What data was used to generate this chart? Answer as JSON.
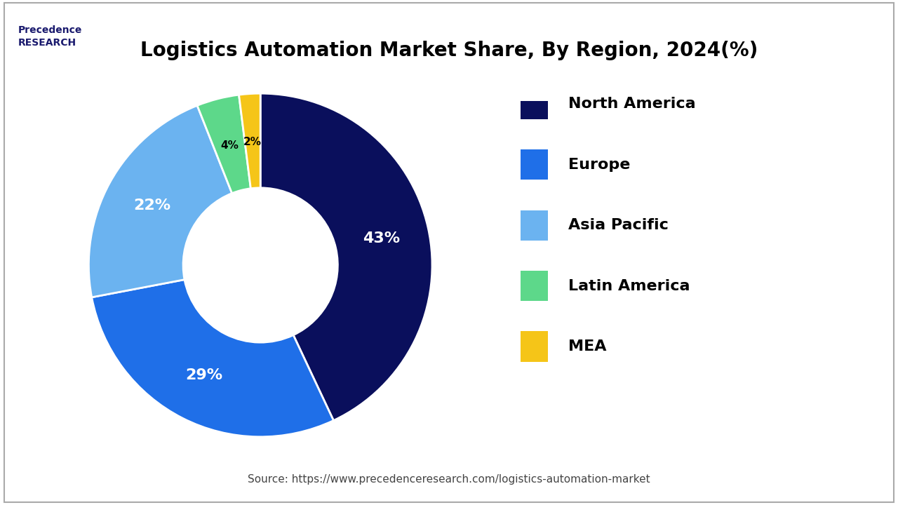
{
  "title": "Logistics Automation Market Share, By Region, 2024(%)",
  "labels": [
    "North America",
    "Europe",
    "Asia Pacific",
    "Latin America",
    "MEA"
  ],
  "values": [
    43,
    29,
    22,
    4,
    2
  ],
  "colors": [
    "#0a0f5c",
    "#1f6fe8",
    "#6bb3f0",
    "#5dd88a",
    "#f5c518"
  ],
  "pct_labels": [
    "43%",
    "29%",
    "22%",
    "4%",
    "2%"
  ],
  "pct_label_colors": [
    "white",
    "white",
    "white",
    "black",
    "black"
  ],
  "source_text": "Source: https://www.precedenceresearch.com/logistics-automation-market",
  "background_color": "#ffffff",
  "border_color": "#cccccc"
}
